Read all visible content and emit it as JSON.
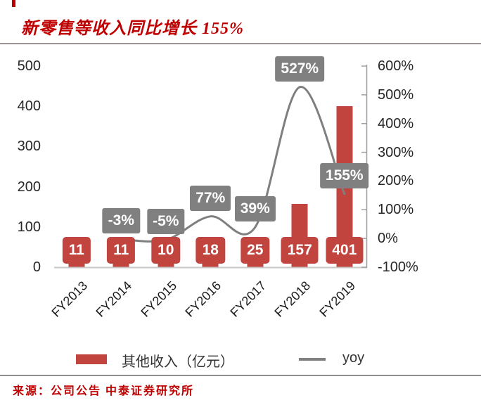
{
  "page": {
    "background": "#ffffff"
  },
  "decor": {
    "top_dash_color": "#c00000"
  },
  "header": {
    "title": "新零售等收入同比增长 155%",
    "title_color": "#c00000"
  },
  "chart_data": {
    "type": "bar+line combo",
    "categories": [
      "FY2013",
      "FY2014",
      "FY2015",
      "FY2016",
      "FY2017",
      "FY2018",
      "FY2019"
    ],
    "series": [
      {
        "name": "其他收入（亿元）",
        "type": "bar",
        "axis": "left",
        "color": "#c2443e",
        "values": [
          11,
          11,
          10,
          18,
          25,
          157,
          401
        ],
        "data_labels": [
          "11",
          "11",
          "10",
          "18",
          "25",
          "157",
          "401"
        ]
      },
      {
        "name": "yoy",
        "type": "line",
        "axis": "right",
        "color": "#7f7f7f",
        "values": [
          null,
          -3,
          -5,
          77,
          39,
          527,
          155
        ],
        "data_labels": [
          null,
          "-3%",
          "-5%",
          "77%",
          "39%",
          "527%",
          "155%"
        ]
      }
    ],
    "left_axis": {
      "min": 0,
      "max": 500,
      "tick_values": [
        500,
        400,
        300,
        200,
        100,
        0
      ],
      "tick_labels": [
        "500",
        "400",
        "300",
        "200",
        "100",
        "0"
      ]
    },
    "right_axis": {
      "min": -100,
      "max": 600,
      "tick_values": [
        600,
        500,
        400,
        300,
        200,
        100,
        0,
        -100
      ],
      "tick_labels": [
        "600%",
        "500%",
        "400%",
        "300%",
        "200%",
        "100%",
        "0%",
        "-100%"
      ]
    },
    "grid": "off",
    "legend_position": "bottom",
    "label_box_colors": {
      "bar_value": "#c2443e",
      "yoy_value": "#808080"
    }
  },
  "legend": {
    "items": [
      {
        "label": "其他收入（亿元）",
        "swatch": "bar",
        "color": "#c2443e"
      },
      {
        "label": "yoy",
        "swatch": "line",
        "color": "#7f7f7f"
      }
    ]
  },
  "footer": {
    "source_text": "来源：公司公告 中泰证券研究所",
    "color": "#c00000"
  }
}
